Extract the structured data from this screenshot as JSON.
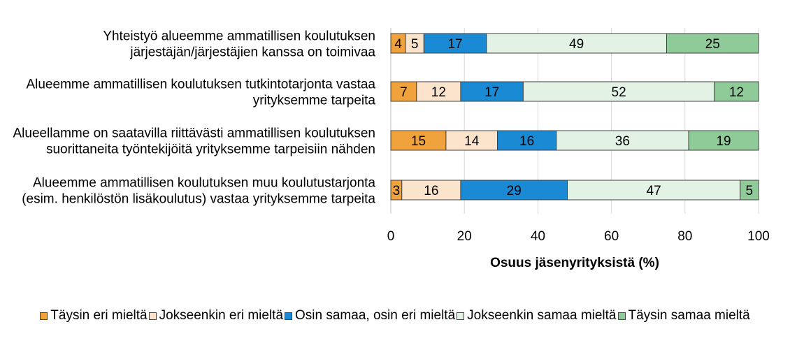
{
  "chart_data": {
    "type": "bar",
    "orientation": "horizontal",
    "stacked": true,
    "categories": [
      [
        "Yhteistyö alueemme ammatillisen koulutuksen",
        "järjestäjän/järjestäjien kanssa on toimivaa"
      ],
      [
        "Alueemme ammatillisen koulutuksen tutkintotarjonta vastaa",
        "yrityksemme tarpeita"
      ],
      [
        "Alueellamme on saatavilla riittävästi ammatillisen koulutuksen",
        "suorittaneita työntekijöitä yrityksemme tarpeisiin nähden"
      ],
      [
        "Alueemme ammatillisen koulutuksen muu koulutustarjonta",
        "(esim. henkilöstön lisäkoulutus) vastaa yrityksemme tarpeita"
      ]
    ],
    "series": [
      {
        "name": "Täysin eri mieltä",
        "color": "#f0a23c",
        "values": [
          4,
          7,
          15,
          3
        ]
      },
      {
        "name": "Jokseenkin eri mieltä",
        "color": "#fce4cc",
        "values": [
          5,
          12,
          14,
          16
        ]
      },
      {
        "name": "Osin samaa, osin eri mieltä",
        "color": "#1a8ad4",
        "values": [
          17,
          17,
          16,
          29
        ]
      },
      {
        "name": "Jokseenkin samaa mieltä",
        "color": "#e2f2e4",
        "values": [
          49,
          52,
          36,
          47
        ]
      },
      {
        "name": "Täysin samaa mieltä",
        "color": "#8fcb98",
        "values": [
          25,
          12,
          19,
          5
        ]
      }
    ],
    "xlabel": "Osuus jäsenyrityksistä (%)",
    "xlim": [
      0,
      100
    ],
    "xticks": [
      0,
      20,
      40,
      60,
      80,
      100
    ],
    "grid": true,
    "legend_position": "bottom"
  }
}
